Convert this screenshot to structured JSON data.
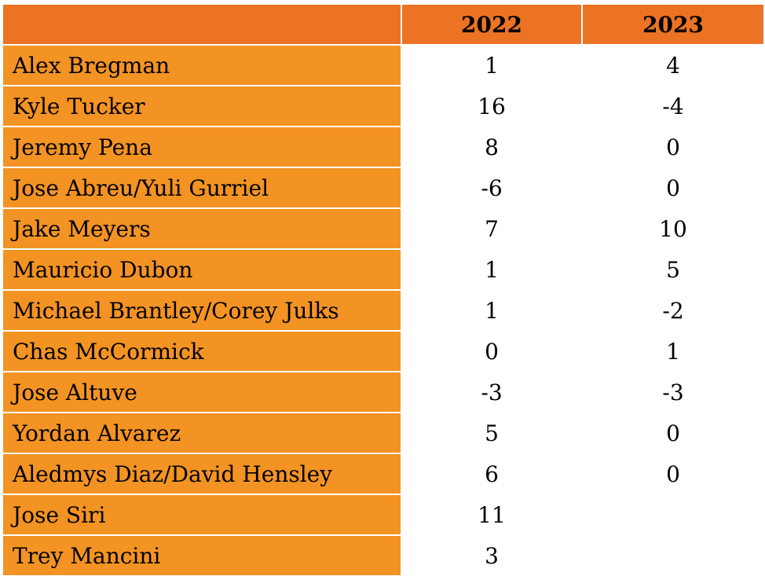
{
  "header": {
    "corner": "",
    "years": [
      "2022",
      "2023"
    ]
  },
  "rows": [
    {
      "name": "Alex Bregman",
      "v2022": "1",
      "v2023": "4"
    },
    {
      "name": "Kyle Tucker",
      "v2022": "16",
      "v2023": "-4"
    },
    {
      "name": "Jeremy Pena",
      "v2022": "8",
      "v2023": "0"
    },
    {
      "name": "Jose Abreu/Yuli Gurriel",
      "v2022": "-6",
      "v2023": "0"
    },
    {
      "name": "Jake Meyers",
      "v2022": "7",
      "v2023": "10"
    },
    {
      "name": "Mauricio Dubon",
      "v2022": "1",
      "v2023": "5"
    },
    {
      "name": "Michael Brantley/Corey Julks",
      "v2022": "1",
      "v2023": "-2"
    },
    {
      "name": "Chas McCormick",
      "v2022": "0",
      "v2023": "1"
    },
    {
      "name": "Jose Altuve",
      "v2022": "-3",
      "v2023": "-3"
    },
    {
      "name": "Yordan Alvarez",
      "v2022": "5",
      "v2023": "0"
    },
    {
      "name": "Aledmys Diaz/David Hensley",
      "v2022": "6",
      "v2023": "0"
    },
    {
      "name": "Jose Siri",
      "v2022": "11",
      "v2023": ""
    },
    {
      "name": "Trey Mancini",
      "v2022": "3",
      "v2023": ""
    }
  ],
  "colors": {
    "header_bg": "#EB7323",
    "name_cell_bg": "#F39323",
    "value_cell_bg": "#FFFFFF"
  }
}
